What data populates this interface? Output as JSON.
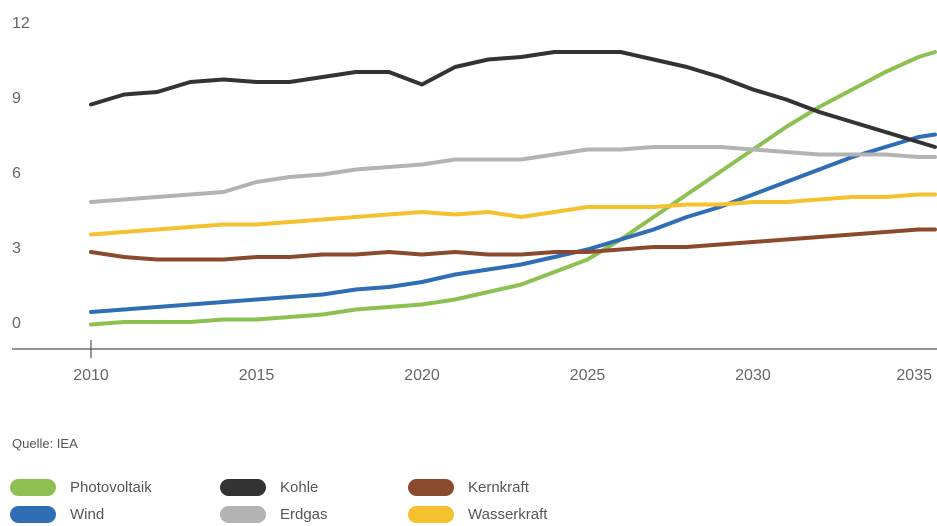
{
  "chart_data": {
    "type": "line",
    "title": "",
    "xlabel": "",
    "ylabel": "",
    "xlim": [
      2010,
      2035.5
    ],
    "ylim": [
      -1.2,
      12
    ],
    "x_ticks": [
      "2010",
      "2015",
      "2020",
      "2025",
      "2030",
      "2035"
    ],
    "y_ticks": [
      "0",
      "3",
      "6",
      "9",
      "12"
    ],
    "grid": false,
    "legend_position": "bottom",
    "series": [
      {
        "name": "Photovoltaik",
        "color": "#8cc152",
        "x": [
          2010,
          2011,
          2012,
          2013,
          2014,
          2015,
          2016,
          2017,
          2018,
          2019,
          2020,
          2021,
          2022,
          2023,
          2024,
          2025,
          2026,
          2027,
          2028,
          2029,
          2030,
          2031,
          2032,
          2033,
          2034,
          2035,
          2035.5
        ],
        "y": [
          -0.1,
          0.0,
          0.0,
          0.0,
          0.1,
          0.1,
          0.2,
          0.3,
          0.5,
          0.6,
          0.7,
          0.9,
          1.2,
          1.5,
          2.0,
          2.5,
          3.3,
          4.2,
          5.1,
          6.0,
          6.9,
          7.8,
          8.6,
          9.3,
          10.0,
          10.6,
          10.8
        ]
      },
      {
        "name": "Wind",
        "color": "#2f6db5",
        "x": [
          2010,
          2011,
          2012,
          2013,
          2014,
          2015,
          2016,
          2017,
          2018,
          2019,
          2020,
          2021,
          2022,
          2023,
          2024,
          2025,
          2026,
          2027,
          2028,
          2029,
          2030,
          2031,
          2032,
          2033,
          2034,
          2035,
          2035.5
        ],
        "y": [
          0.4,
          0.5,
          0.6,
          0.7,
          0.8,
          0.9,
          1.0,
          1.1,
          1.3,
          1.4,
          1.6,
          1.9,
          2.1,
          2.3,
          2.6,
          2.9,
          3.3,
          3.7,
          4.2,
          4.6,
          5.1,
          5.6,
          6.1,
          6.6,
          7.0,
          7.4,
          7.5
        ]
      },
      {
        "name": "Kohle",
        "color": "#333333",
        "x": [
          2010,
          2011,
          2012,
          2013,
          2014,
          2015,
          2016,
          2017,
          2018,
          2019,
          2020,
          2021,
          2022,
          2023,
          2024,
          2025,
          2026,
          2027,
          2028,
          2029,
          2030,
          2031,
          2032,
          2033,
          2034,
          2035,
          2035.5
        ],
        "y": [
          8.7,
          9.1,
          9.2,
          9.6,
          9.7,
          9.6,
          9.6,
          9.8,
          10.0,
          10.0,
          9.5,
          10.2,
          10.5,
          10.6,
          10.8,
          10.8,
          10.8,
          10.5,
          10.2,
          9.8,
          9.3,
          8.9,
          8.4,
          8.0,
          7.6,
          7.2,
          7.0
        ]
      },
      {
        "name": "Erdgas",
        "color": "#b3b3b3",
        "x": [
          2010,
          2011,
          2012,
          2013,
          2014,
          2015,
          2016,
          2017,
          2018,
          2019,
          2020,
          2021,
          2022,
          2023,
          2024,
          2025,
          2026,
          2027,
          2028,
          2029,
          2030,
          2031,
          2032,
          2033,
          2034,
          2035,
          2035.5
        ],
        "y": [
          4.8,
          4.9,
          5.0,
          5.1,
          5.2,
          5.6,
          5.8,
          5.9,
          6.1,
          6.2,
          6.3,
          6.5,
          6.5,
          6.5,
          6.7,
          6.9,
          6.9,
          7.0,
          7.0,
          7.0,
          6.9,
          6.8,
          6.7,
          6.7,
          6.7,
          6.6,
          6.6
        ]
      },
      {
        "name": "Kernkraft",
        "color": "#8b4a2e",
        "x": [
          2010,
          2011,
          2012,
          2013,
          2014,
          2015,
          2016,
          2017,
          2018,
          2019,
          2020,
          2021,
          2022,
          2023,
          2024,
          2025,
          2026,
          2027,
          2028,
          2029,
          2030,
          2031,
          2032,
          2033,
          2034,
          2035,
          2035.5
        ],
        "y": [
          2.8,
          2.6,
          2.5,
          2.5,
          2.5,
          2.6,
          2.6,
          2.7,
          2.7,
          2.8,
          2.7,
          2.8,
          2.7,
          2.7,
          2.8,
          2.8,
          2.9,
          3.0,
          3.0,
          3.1,
          3.2,
          3.3,
          3.4,
          3.5,
          3.6,
          3.7,
          3.7
        ]
      },
      {
        "name": "Wasserkraft",
        "color": "#f5c12e",
        "x": [
          2010,
          2011,
          2012,
          2013,
          2014,
          2015,
          2016,
          2017,
          2018,
          2019,
          2020,
          2021,
          2022,
          2023,
          2024,
          2025,
          2026,
          2027,
          2028,
          2029,
          2030,
          2031,
          2032,
          2033,
          2034,
          2035,
          2035.5
        ],
        "y": [
          3.5,
          3.6,
          3.7,
          3.8,
          3.9,
          3.9,
          4.0,
          4.1,
          4.2,
          4.3,
          4.4,
          4.3,
          4.4,
          4.2,
          4.4,
          4.6,
          4.6,
          4.6,
          4.7,
          4.7,
          4.8,
          4.8,
          4.9,
          5.0,
          5.0,
          5.1,
          5.1
        ]
      }
    ]
  },
  "source_text": "Quelle: IEA",
  "legend": [
    {
      "label": "Photovoltaik",
      "color": "#8cc152"
    },
    {
      "label": "Wind",
      "color": "#2f6db5"
    },
    {
      "label": "Kohle",
      "color": "#333333"
    },
    {
      "label": "Erdgas",
      "color": "#b3b3b3"
    },
    {
      "label": "Kernkraft",
      "color": "#8b4a2e"
    },
    {
      "label": "Wasserkraft",
      "color": "#f5c12e"
    }
  ]
}
